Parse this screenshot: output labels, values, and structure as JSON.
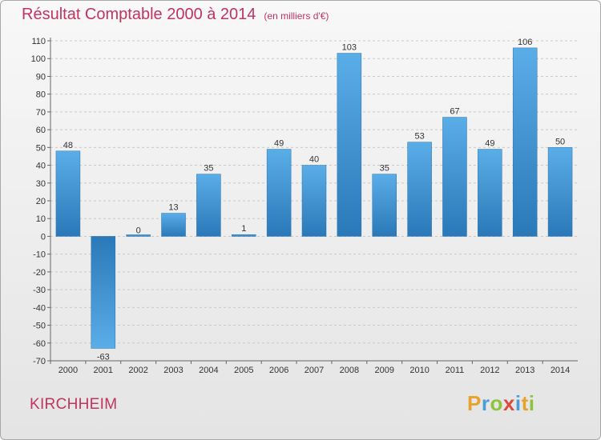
{
  "chart_data": {
    "type": "bar",
    "title": "Résultat Comptable 2000 à 2014",
    "subtitle": "(en milliers d'€)",
    "categories": [
      "2000",
      "2001",
      "2002",
      "2003",
      "2004",
      "2005",
      "2006",
      "2007",
      "2008",
      "2009",
      "2010",
      "2011",
      "2012",
      "2013",
      "2014"
    ],
    "values": [
      48,
      -63,
      0,
      13,
      35,
      1,
      49,
      40,
      103,
      35,
      53,
      67,
      49,
      106,
      50
    ],
    "ylim": [
      -70,
      110
    ],
    "yticks": [
      110,
      100,
      90,
      80,
      70,
      60,
      50,
      40,
      30,
      20,
      10,
      0,
      -10,
      -20,
      -30,
      -40,
      -50,
      -60,
      -70
    ],
    "grid": true,
    "bar_color": "#3d93d8"
  },
  "footer": {
    "commune": "KIRCHHEIM",
    "brand": "Proxiti"
  }
}
